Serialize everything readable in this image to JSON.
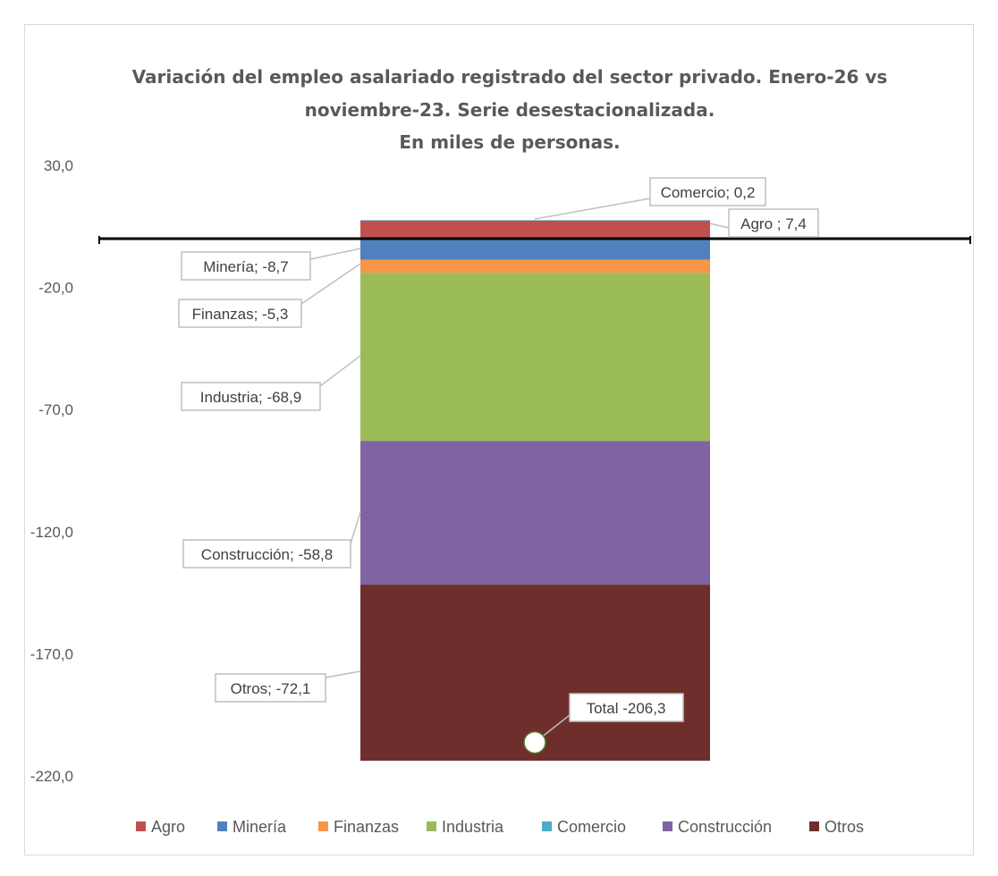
{
  "chart_data": {
    "type": "bar",
    "stacked": true,
    "title_lines": [
      "Variación del empleo asalariado registrado del sector privado. Enero-26 vs",
      "noviembre-23. Serie desestacionalizada.",
      "En miles de personas."
    ],
    "xlabel": "",
    "ylabel": "",
    "ylim": [
      -220,
      30
    ],
    "yticks": [
      30,
      -20,
      -70,
      -120,
      -170,
      -220
    ],
    "ytick_labels": [
      "30,0",
      "-20,0",
      "-70,0",
      "-120,0",
      "-170,0",
      "-220,0"
    ],
    "grid": false,
    "legend_position": "bottom",
    "series": [
      {
        "name": "Agro",
        "value": 7.4,
        "label": "Agro ; 7,4",
        "color": "#C0504D"
      },
      {
        "name": "Minería",
        "value": -8.7,
        "label": "Minería; -8,7",
        "color": "#4F81BD"
      },
      {
        "name": "Finanzas",
        "value": -5.3,
        "label": "Finanzas; -5,3",
        "color": "#F79646"
      },
      {
        "name": "Industria",
        "value": -68.9,
        "label": "Industria; -68,9",
        "color": "#9BBB59"
      },
      {
        "name": "Comercio",
        "value": 0.2,
        "label": "Comercio; 0,2",
        "color": "#4BACC6"
      },
      {
        "name": "Construcción",
        "value": -58.8,
        "label": "Construcción; -58,8",
        "color": "#8064A2"
      },
      {
        "name": "Otros",
        "value": -72.1,
        "label": "Otros; -72,1",
        "color": "#6E2F2C"
      }
    ],
    "total": {
      "value": -206.3,
      "label": "Total -206,3"
    }
  }
}
